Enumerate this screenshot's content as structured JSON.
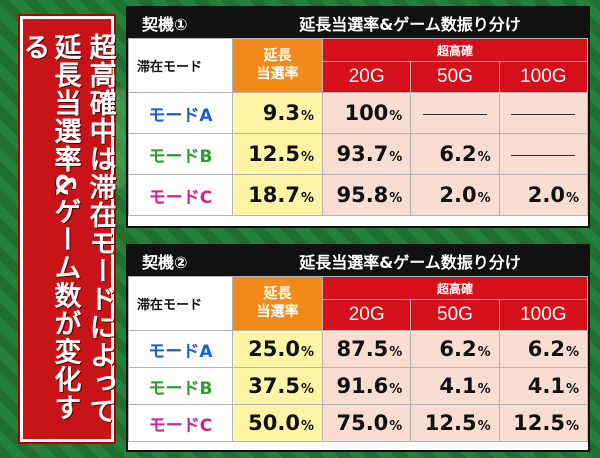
{
  "side_banner": {
    "line1": "超高確中は滞在モードによって",
    "line2": "延長当選率&ゲーム数が変化する"
  },
  "tables": [
    {
      "machine": "契機①",
      "title": "延長当選率&ゲーム数振り分け",
      "header": {
        "mode": "滞在モード",
        "rate_line1": "延長",
        "rate_line2": "当選率",
        "super": "超高確",
        "g1": "20G",
        "g2": "50G",
        "g3": "100G"
      },
      "rows": [
        {
          "mode": "モードA",
          "rate": "9.3",
          "g20": "100",
          "g50": "",
          "g100": ""
        },
        {
          "mode": "モードB",
          "rate": "12.5",
          "g20": "93.7",
          "g50": "6.2",
          "g100": ""
        },
        {
          "mode": "モードC",
          "rate": "18.7",
          "g20": "95.8",
          "g50": "2.0",
          "g100": "2.0"
        }
      ]
    },
    {
      "machine": "契機②",
      "title": "延長当選率&ゲーム数振り分け",
      "header": {
        "mode": "滞在モード",
        "rate_line1": "延長",
        "rate_line2": "当選率",
        "super": "超高確",
        "g1": "20G",
        "g2": "50G",
        "g3": "100G"
      },
      "rows": [
        {
          "mode": "モードA",
          "rate": "25.0",
          "g20": "87.5",
          "g50": "6.2",
          "g100": "6.2"
        },
        {
          "mode": "モードB",
          "rate": "37.5",
          "g20": "91.6",
          "g50": "4.1",
          "g100": "4.1"
        },
        {
          "mode": "モードC",
          "rate": "50.0",
          "g20": "75.0",
          "g50": "12.5",
          "g100": "12.5"
        }
      ]
    }
  ],
  "unit": "%"
}
